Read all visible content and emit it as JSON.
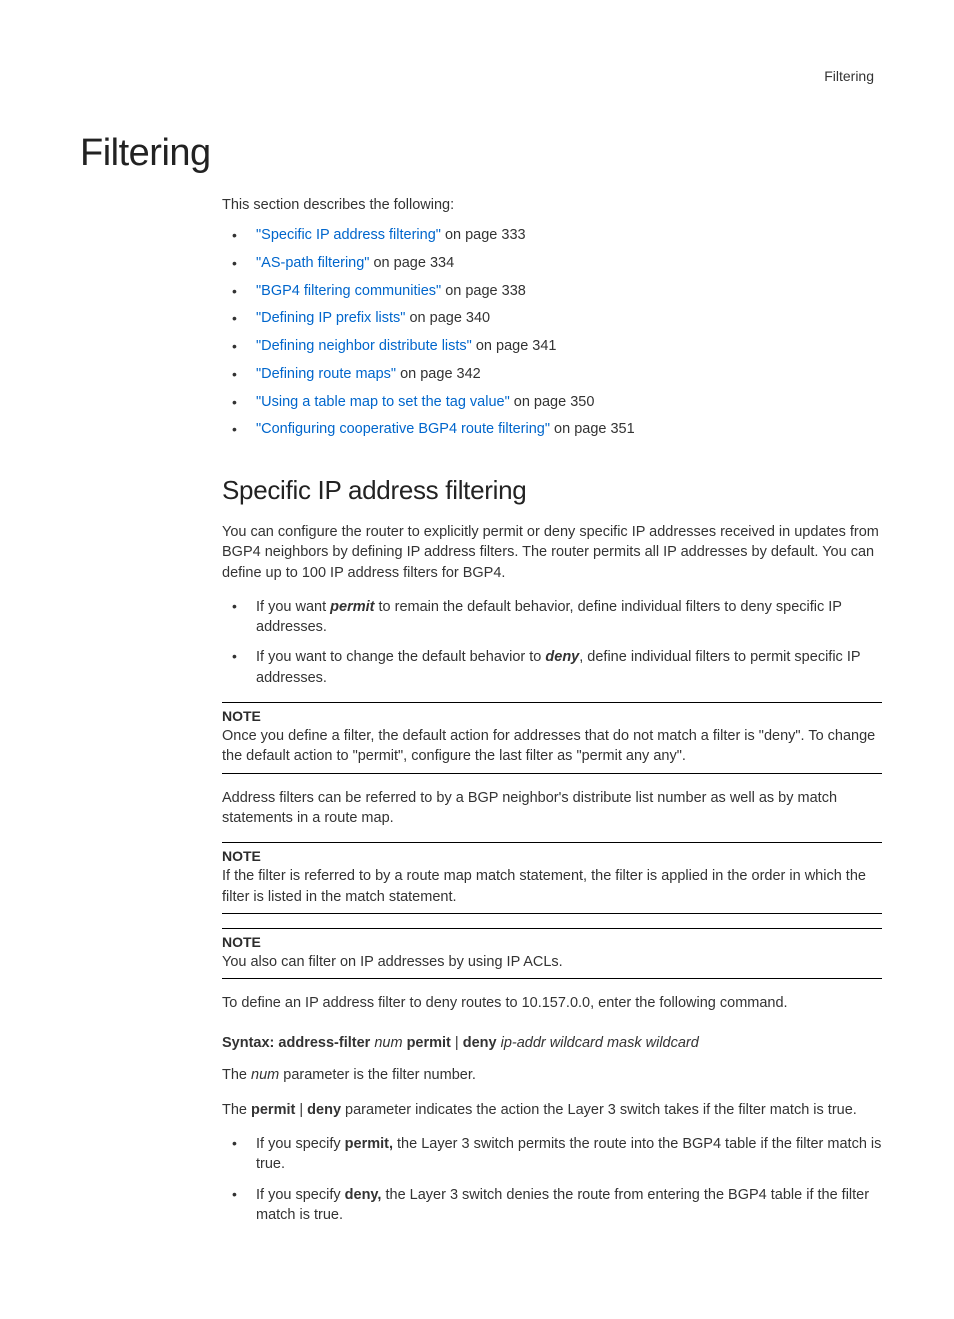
{
  "header": {
    "running_head": "Filtering"
  },
  "h1": "Filtering",
  "intro": "This section describes the following:",
  "toc": [
    {
      "link": "\"Specific IP address filtering\"",
      "suffix": " on page 333"
    },
    {
      "link": "\"AS-path filtering\"",
      "suffix": " on page 334"
    },
    {
      "link": "\"BGP4 filtering communities\"",
      "suffix": " on page 338"
    },
    {
      "link": "\"Defining IP prefix lists\"",
      "suffix": " on page 340"
    },
    {
      "link": "\"Defining neighbor distribute lists\"",
      "suffix": " on page 341"
    },
    {
      "link": "\"Defining route maps\"",
      "suffix": " on page 342"
    },
    {
      "link": "\"Using a table map to set the tag value\"",
      "suffix": " on page 350"
    },
    {
      "link": "\"Configuring cooperative BGP4 route filtering\"",
      "suffix": " on page 351"
    }
  ],
  "h2": "Specific IP address filtering",
  "para1": "You can configure the router to explicitly permit or deny specific IP addresses received in updates from BGP4 neighbors by defining IP address filters. The router permits all IP addresses by default. You can define up to 100 IP address filters for BGP4.",
  "permit_deny": [
    {
      "pre": "If you want ",
      "bold": "permit",
      "post": " to remain the default behavior, define individual filters to deny specific IP addresses."
    },
    {
      "pre": "If you want to change the default behavior to ",
      "bold": "deny",
      "post": ", define individual filters to permit specific IP addresses."
    }
  ],
  "note_label": "NOTE",
  "note1": "Once you define a filter, the default action for addresses that do not match a filter is \"deny\". To change the default action to \"permit\", configure the last filter as \"permit any any\".",
  "para2": "Address filters can be referred to by a BGP neighbor's distribute list number as well as by match statements in a route map.",
  "note2": "If the filter is referred to by a route map match statement, the filter is applied in the order in which the filter is listed in the match statement.",
  "note3": "You also can filter on IP addresses by using IP ACLs.",
  "para3": "To define an IP address filter to deny routes to 10.157.0.0, enter the following command.",
  "syntax": {
    "lead": "Syntax:  ",
    "cmd": "address-filter",
    "num": " num ",
    "permit": "permit",
    "sep": " | ",
    "deny": "deny",
    "args": " ip-addr wildcard mask wildcard"
  },
  "para4_pre": "The ",
  "para4_i": "num",
  "para4_post": " parameter is the filter number.",
  "para5_pre": "The ",
  "para5_b1": "permit",
  "para5_mid": " | ",
  "para5_b2": "deny",
  "para5_post": " parameter indicates the action the Layer 3 switch takes if the filter match is true.",
  "spec_list": [
    {
      "pre": "If you specify ",
      "bold": "permit,",
      "post": " the Layer 3 switch permits the route into the BGP4 table if the filter match is true."
    },
    {
      "pre": "If you specify ",
      "bold": "deny,",
      "post": " the Layer 3 switch denies the route from entering the BGP4 table if the filter match is true."
    }
  ]
}
